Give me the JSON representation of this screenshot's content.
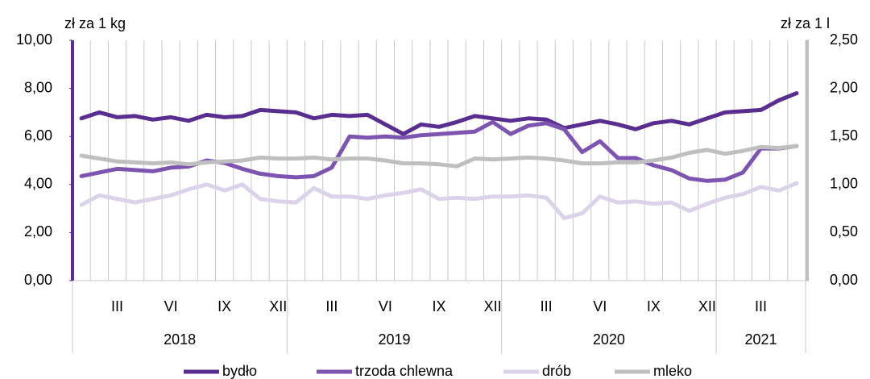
{
  "chart_data": {
    "type": "line",
    "y_axis_label": "zł za 1 kg",
    "y2_axis_label": "zł za 1 l",
    "categories": [
      null,
      null,
      "III",
      null,
      null,
      "VI",
      null,
      null,
      "IX",
      null,
      null,
      "XII",
      null,
      null,
      "III",
      null,
      null,
      "VI",
      null,
      null,
      "IX",
      null,
      null,
      "XII",
      null,
      null,
      "III",
      null,
      null,
      "VI",
      null,
      null,
      "IX",
      null,
      null,
      "XII",
      null,
      null,
      "III",
      null,
      null
    ],
    "groups": [
      "2018",
      "2019",
      "2020",
      "2021"
    ],
    "group_sizes": [
      12,
      12,
      12,
      5
    ],
    "ylim": [
      0,
      10
    ],
    "yticks": [
      {
        "value": 0,
        "label": "0,00"
      },
      {
        "value": 2,
        "label": "2,00"
      },
      {
        "value": 4,
        "label": "4,00"
      },
      {
        "value": 6,
        "label": "6,00"
      },
      {
        "value": 8,
        "label": "8,00"
      },
      {
        "value": 10,
        "label": "10,00"
      }
    ],
    "y2lim": [
      0,
      2.5
    ],
    "y2ticks": [
      {
        "value": 0,
        "label": "0,00"
      },
      {
        "value": 0.5,
        "label": "0,50"
      },
      {
        "value": 1,
        "label": "1,00"
      },
      {
        "value": 1.5,
        "label": "1,50"
      },
      {
        "value": 2,
        "label": "2,00"
      },
      {
        "value": 2.5,
        "label": "2,50"
      }
    ],
    "grid": "vertical",
    "legend": "bottom",
    "series": [
      {
        "name": "bydło",
        "color": "#5a2d91",
        "values": [
          6.75,
          7.0,
          6.8,
          6.85,
          6.7,
          6.8,
          6.65,
          6.9,
          6.8,
          6.85,
          7.1,
          7.05,
          7.0,
          6.75,
          6.9,
          6.85,
          6.9,
          6.5,
          6.1,
          6.5,
          6.4,
          6.6,
          6.85,
          6.75,
          6.65,
          6.75,
          6.7,
          6.35,
          6.5,
          6.65,
          6.5,
          6.3,
          6.55,
          6.65,
          6.5,
          6.75,
          7.0,
          7.05,
          7.1,
          7.5,
          7.8
        ]
      },
      {
        "name": "trzoda chlewna",
        "color": "#7d55b0",
        "values": [
          4.35,
          4.5,
          4.65,
          4.6,
          4.55,
          4.7,
          4.75,
          5.0,
          4.9,
          4.65,
          4.45,
          4.35,
          4.3,
          4.35,
          4.7,
          6.0,
          5.95,
          6.0,
          5.95,
          6.05,
          6.1,
          6.15,
          6.2,
          6.6,
          6.1,
          6.45,
          6.55,
          6.3,
          5.35,
          5.8,
          5.1,
          5.1,
          4.8,
          4.6,
          4.25,
          4.15,
          4.2,
          4.5,
          5.5,
          5.5,
          5.6
        ]
      },
      {
        "name": "drób",
        "color": "#dcd3ea",
        "values": [
          3.15,
          3.55,
          3.4,
          3.25,
          3.4,
          3.55,
          3.8,
          4.0,
          3.75,
          4.0,
          3.4,
          3.3,
          3.25,
          3.85,
          3.5,
          3.5,
          3.4,
          3.55,
          3.65,
          3.8,
          3.4,
          3.45,
          3.4,
          3.5,
          3.5,
          3.55,
          3.45,
          2.6,
          2.8,
          3.5,
          3.25,
          3.3,
          3.2,
          3.25,
          2.9,
          3.2,
          3.45,
          3.6,
          3.9,
          3.75,
          4.05
        ]
      },
      {
        "name": "mleko",
        "color": "#bfbfbf",
        "axis": "y2",
        "values": [
          1.3,
          1.27,
          1.24,
          1.23,
          1.22,
          1.23,
          1.21,
          1.23,
          1.24,
          1.25,
          1.28,
          1.27,
          1.27,
          1.28,
          1.26,
          1.27,
          1.27,
          1.25,
          1.22,
          1.22,
          1.21,
          1.19,
          1.27,
          1.26,
          1.27,
          1.28,
          1.27,
          1.25,
          1.22,
          1.22,
          1.23,
          1.23,
          1.25,
          1.28,
          1.33,
          1.36,
          1.32,
          1.35,
          1.39,
          1.38,
          1.4
        ]
      }
    ]
  }
}
